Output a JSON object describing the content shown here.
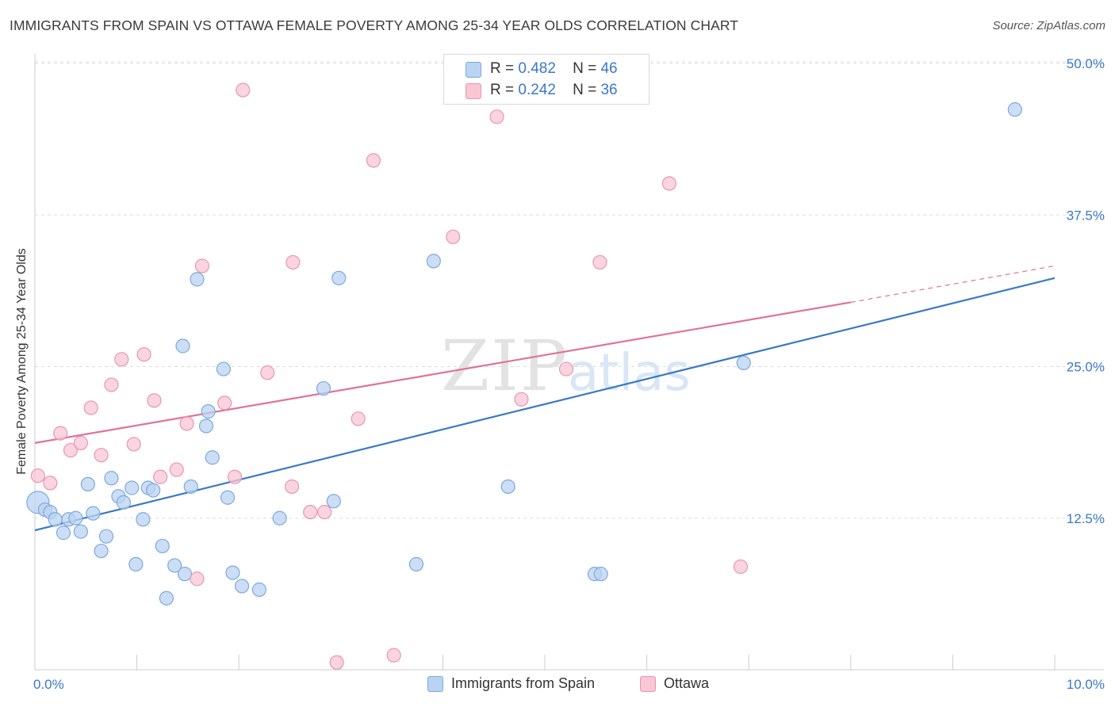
{
  "title": "IMMIGRANTS FROM SPAIN VS OTTAWA FEMALE POVERTY AMONG 25-34 YEAR OLDS CORRELATION CHART",
  "source": "Source: ZipAtlas.com",
  "watermark": {
    "zip": "ZIP",
    "atlas": "atlas"
  },
  "colors": {
    "blue_fill": "#b9d3f2",
    "blue_stroke": "#7fa8dc",
    "blue_line": "#3a78c9",
    "pink_fill": "#f8c6d5",
    "pink_stroke": "#e996b0",
    "pink_line": "#e0729a",
    "tick_label": "#3a78c9",
    "grid": "#dddddd"
  },
  "legend": {
    "rows": [
      {
        "r_label": "R =",
        "r_value": "0.482",
        "n_label": "N =",
        "n_value": "46",
        "color": "#b9d3f2"
      },
      {
        "r_label": "R =",
        "r_value": "0.242",
        "n_label": "N =",
        "n_value": "36",
        "color": "#f8c6d5"
      }
    ]
  },
  "chart_data": {
    "type": "scatter",
    "xlabel": "",
    "ylabel": "Female Poverty Among 25-34 Year Olds",
    "xlim": [
      0,
      10
    ],
    "ylim": [
      0,
      50
    ],
    "x_tick_labels": [
      "0.0%",
      "10.0%"
    ],
    "y_ticks": [
      12.5,
      25.0,
      37.5,
      50.0
    ],
    "y_tick_labels": [
      "12.5%",
      "25.0%",
      "37.5%",
      "50.0%"
    ],
    "grid": "horizontal dashed",
    "legend_placement": "bottom-center",
    "series": [
      {
        "name": "Immigrants from Spain",
        "color": "#b9d3f2",
        "points": [
          [
            0.03,
            13.8
          ],
          [
            0.1,
            13.2
          ],
          [
            0.15,
            13.0
          ],
          [
            0.2,
            12.4
          ],
          [
            0.28,
            11.3
          ],
          [
            0.33,
            12.4
          ],
          [
            0.4,
            12.5
          ],
          [
            0.45,
            11.4
          ],
          [
            0.52,
            15.3
          ],
          [
            0.57,
            12.9
          ],
          [
            0.65,
            9.8
          ],
          [
            0.7,
            11.0
          ],
          [
            0.75,
            15.8
          ],
          [
            0.82,
            14.3
          ],
          [
            0.87,
            13.8
          ],
          [
            0.95,
            15.0
          ],
          [
            0.99,
            8.7
          ],
          [
            1.06,
            12.4
          ],
          [
            1.11,
            15.0
          ],
          [
            1.16,
            14.8
          ],
          [
            1.25,
            10.2
          ],
          [
            1.29,
            5.9
          ],
          [
            1.37,
            8.6
          ],
          [
            1.45,
            26.7
          ],
          [
            1.47,
            7.9
          ],
          [
            1.53,
            15.1
          ],
          [
            1.59,
            32.2
          ],
          [
            1.68,
            20.1
          ],
          [
            1.7,
            21.3
          ],
          [
            1.74,
            17.5
          ],
          [
            1.85,
            24.8
          ],
          [
            1.89,
            14.2
          ],
          [
            1.94,
            8.0
          ],
          [
            2.03,
            6.9
          ],
          [
            2.2,
            6.6
          ],
          [
            2.4,
            12.5
          ],
          [
            2.83,
            23.2
          ],
          [
            2.93,
            13.9
          ],
          [
            2.98,
            32.3
          ],
          [
            3.74,
            8.7
          ],
          [
            3.91,
            33.7
          ],
          [
            4.64,
            15.1
          ],
          [
            5.49,
            7.9
          ],
          [
            5.55,
            7.9
          ],
          [
            6.95,
            25.3
          ],
          [
            9.61,
            46.2
          ]
        ]
      },
      {
        "name": "Ottawa",
        "color": "#f8c6d5",
        "points": [
          [
            0.03,
            16.0
          ],
          [
            0.15,
            15.4
          ],
          [
            0.25,
            19.5
          ],
          [
            0.35,
            18.1
          ],
          [
            0.45,
            18.7
          ],
          [
            0.55,
            21.6
          ],
          [
            0.65,
            17.7
          ],
          [
            0.75,
            23.5
          ],
          [
            0.85,
            25.6
          ],
          [
            0.97,
            18.6
          ],
          [
            1.07,
            26.0
          ],
          [
            1.17,
            22.2
          ],
          [
            1.23,
            15.9
          ],
          [
            1.39,
            16.5
          ],
          [
            1.49,
            20.3
          ],
          [
            1.59,
            7.5
          ],
          [
            1.64,
            33.3
          ],
          [
            1.86,
            22.0
          ],
          [
            1.96,
            15.9
          ],
          [
            2.04,
            47.8
          ],
          [
            2.28,
            24.5
          ],
          [
            2.53,
            33.6
          ],
          [
            2.52,
            15.1
          ],
          [
            2.7,
            13.0
          ],
          [
            2.84,
            13.0
          ],
          [
            2.96,
            0.6
          ],
          [
            3.17,
            20.7
          ],
          [
            3.32,
            42.0
          ],
          [
            3.52,
            1.2
          ],
          [
            4.1,
            35.7
          ],
          [
            4.53,
            45.6
          ],
          [
            4.77,
            22.3
          ],
          [
            5.21,
            24.8
          ],
          [
            5.54,
            33.6
          ],
          [
            6.22,
            40.1
          ],
          [
            6.92,
            8.5
          ]
        ]
      }
    ],
    "trendlines": [
      {
        "series": "Immigrants from Spain",
        "x": [
          0,
          10
        ],
        "y": [
          11.5,
          32.3
        ]
      },
      {
        "series": "Ottawa",
        "x": [
          0,
          8.0
        ],
        "y": [
          18.7,
          30.3
        ],
        "dashed_extension_to": [
          10,
          33.3
        ]
      }
    ]
  }
}
